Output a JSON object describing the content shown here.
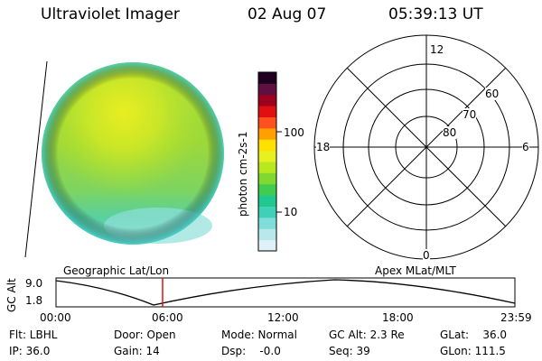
{
  "header": {
    "title": "Ultraviolet Imager",
    "date": "02 Aug 07",
    "time": "05:39:13 UT"
  },
  "colorbar": {
    "label": "photon cm-2s-1",
    "ticks": [
      "100",
      "10"
    ],
    "colors": [
      "#e0f0f8",
      "#b8e8ea",
      "#80dcd8",
      "#40d0b8",
      "#20c890",
      "#40cc50",
      "#80d830",
      "#b8e820",
      "#e8f020",
      "#ffe000",
      "#ffa000",
      "#ff5020",
      "#e01010",
      "#a00020",
      "#601040",
      "#200020"
    ]
  },
  "polar_plot": {
    "ring_labels": [
      "60",
      "70",
      "80"
    ],
    "clock_labels": {
      "top": "12",
      "left": "18",
      "right": "6",
      "bottom": "0"
    }
  },
  "timeline": {
    "left_title": "Geographic Lat/Lon",
    "right_title": "Apex MLat/MLT",
    "y_label": "GC Alt",
    "y_ticks": [
      "9.0",
      "1.8"
    ],
    "x_ticks": [
      "00:00",
      "06:00",
      "12:00",
      "18:00",
      "23:59"
    ],
    "marker_color": "#e01010"
  },
  "info": {
    "flt": "Flt: LBHL",
    "ip": "IP: 36.0",
    "door": "Door: Open",
    "gain": "Gain: 14",
    "mode": "Mode: Normal",
    "dsp": "Dsp:    -0.0",
    "gc_alt": "GC Alt: 2.3 Re",
    "seq": "Seq: 39",
    "glat": "GLat:    36.0",
    "glon": "GLon: 111.5"
  }
}
